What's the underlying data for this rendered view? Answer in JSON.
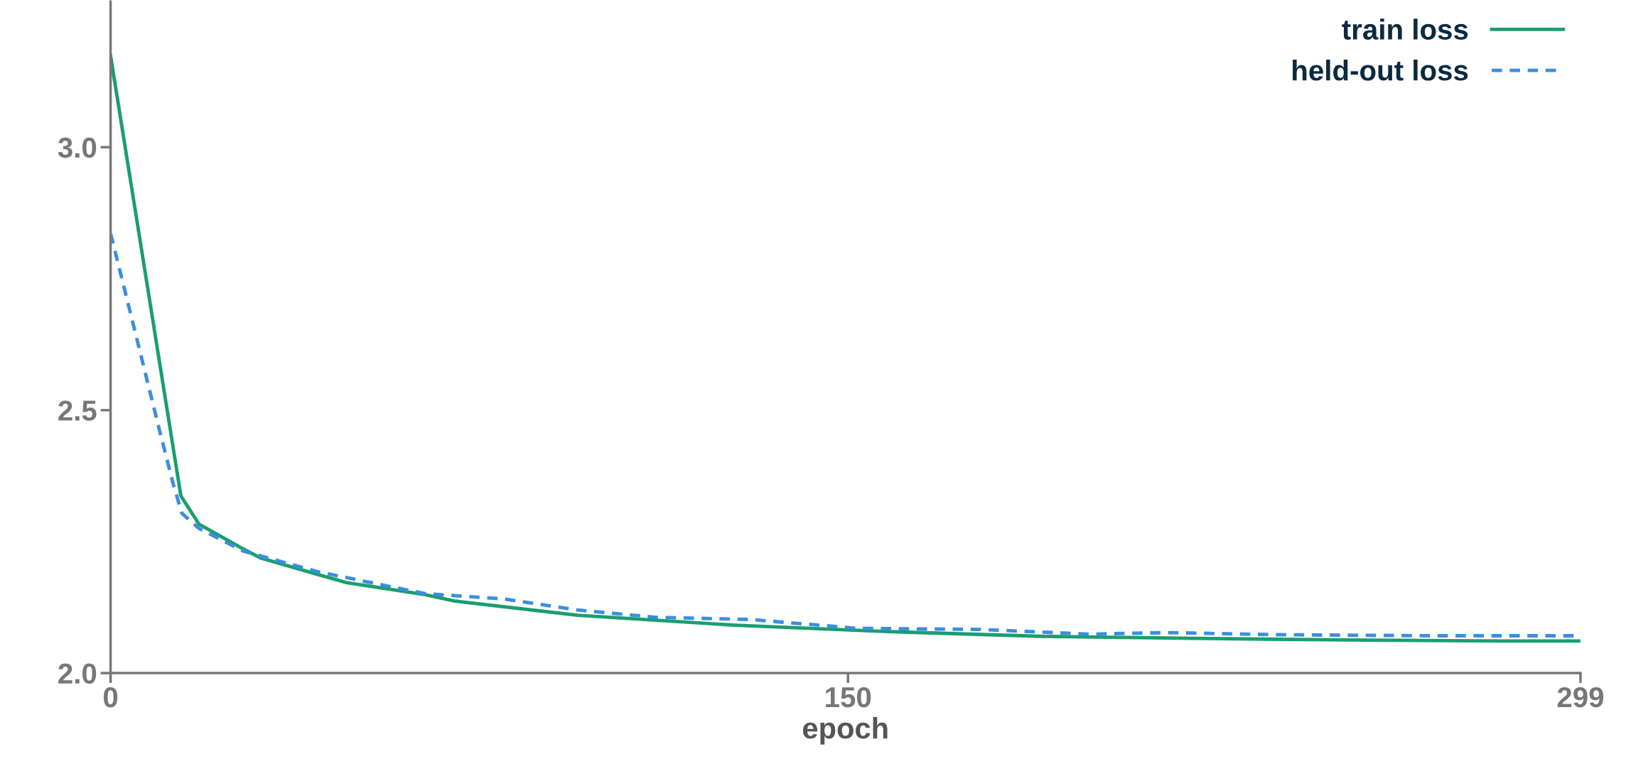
{
  "chart_data": {
    "type": "line",
    "xlabel": "epoch",
    "xlim": [
      0,
      299
    ],
    "xticks": [
      0,
      150,
      299
    ],
    "ylim": [
      2.0,
      3.277
    ],
    "yticks": [
      {
        "value": 2.0,
        "label": "2.0"
      },
      {
        "value": 2.5,
        "label": "2.5"
      },
      {
        "value": 3.0,
        "label": "3.0"
      }
    ],
    "grid": false,
    "legend": "top right",
    "marker": "none",
    "series": [
      {
        "name": "train loss",
        "color": "#1a9e6e",
        "line_style": "solid",
        "x": [
          0,
          14.3,
          18,
          27,
          30.5,
          42,
          48,
          64,
          70,
          95,
          127,
          158,
          189,
          220,
          251,
          283,
          299
        ],
        "values": [
          3.174,
          2.337,
          2.283,
          2.236,
          2.219,
          2.188,
          2.172,
          2.149,
          2.137,
          2.11,
          2.091,
          2.079,
          2.07,
          2.066,
          2.063,
          2.061,
          2.061
        ]
      },
      {
        "name": "held-out loss",
        "color": "#3a8ee0",
        "line_style": "dashed",
        "x": [
          0,
          3,
          6.5,
          10,
          12.7,
          14.5,
          18,
          27,
          42,
          64,
          80,
          95,
          111,
          130,
          152,
          177,
          199,
          215,
          237,
          268,
          299
        ],
        "values": [
          2.836,
          2.724,
          2.592,
          2.46,
          2.361,
          2.304,
          2.275,
          2.232,
          2.193,
          2.151,
          2.141,
          2.12,
          2.106,
          2.102,
          2.085,
          2.083,
          2.074,
          2.077,
          2.073,
          2.071,
          2.071
        ]
      }
    ]
  }
}
